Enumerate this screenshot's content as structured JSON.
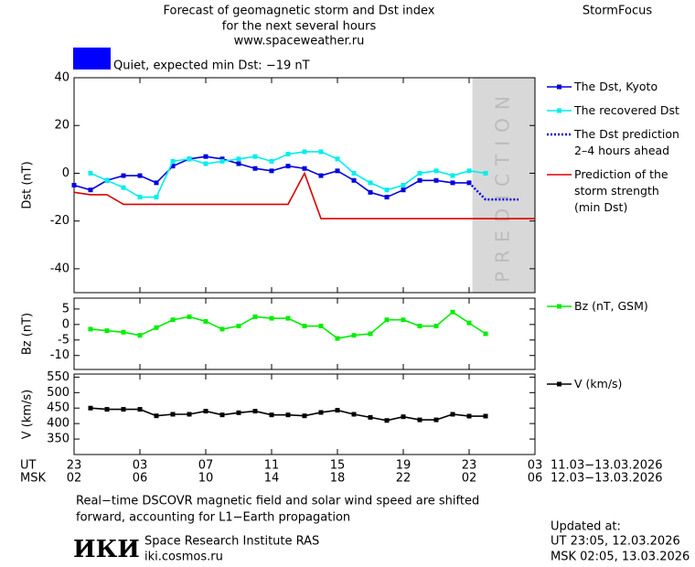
{
  "header": {
    "title_lines": [
      "Forecast of geomagnetic storm and Dst index",
      "for the next several hours",
      "www.spaceweather.ru"
    ],
    "brand": "StormFocus",
    "status": {
      "text": "Quiet, expected min Dst: −19 nT",
      "color": "#0000ff"
    }
  },
  "time_axis": {
    "xlim": [
      0,
      28
    ],
    "row_labels": [
      "UT",
      "MSK"
    ],
    "ut_ticks": [
      {
        "value": 0,
        "label": "23"
      },
      {
        "value": 4,
        "label": "03"
      },
      {
        "value": 8,
        "label": "07"
      },
      {
        "value": 12,
        "label": "11"
      },
      {
        "value": 16,
        "label": "15"
      },
      {
        "value": 20,
        "label": "19"
      },
      {
        "value": 24,
        "label": "23"
      },
      {
        "value": 28,
        "label": "03"
      }
    ],
    "msk_ticks": [
      {
        "value": 0,
        "label": "02"
      },
      {
        "value": 4,
        "label": "06"
      },
      {
        "value": 8,
        "label": "10"
      },
      {
        "value": 12,
        "label": "14"
      },
      {
        "value": 16,
        "label": "18"
      },
      {
        "value": 20,
        "label": "22"
      },
      {
        "value": 24,
        "label": "02"
      },
      {
        "value": 28,
        "label": "06"
      }
    ],
    "ut_range": "11.03−13.03.2026",
    "msk_range": "12.03−13.03.2026"
  },
  "chart_data": [
    {
      "type": "line",
      "y_label": "Dst (nT)",
      "ylim": [
        -50,
        40
      ],
      "yticks": [
        40,
        20,
        0,
        -20,
        -40
      ],
      "shaded_xlim": [
        24.2,
        28
      ],
      "shaded_label": "PREDICTION",
      "series": [
        {
          "name": "The Dst, Kyoto",
          "color": "#0000dd",
          "marker": "square",
          "dash": null,
          "x": [
            0,
            1,
            2,
            3,
            4,
            5,
            6,
            7,
            8,
            9,
            10,
            11,
            12,
            13,
            14,
            15,
            16,
            17,
            18,
            19,
            20,
            21,
            22,
            23,
            24
          ],
          "values": [
            -5,
            -7,
            -3,
            -1,
            -1,
            -4,
            3,
            6,
            7,
            6,
            4,
            2,
            1,
            3,
            2,
            -1,
            1,
            -3,
            -8,
            -10,
            -7,
            -3,
            -3,
            -4,
            -4
          ]
        },
        {
          "name": "The recovered Dst",
          "color": "#00eeee",
          "marker": "square",
          "dash": null,
          "x": [
            1,
            2,
            3,
            4,
            5,
            6,
            7,
            8,
            9,
            10,
            11,
            12,
            13,
            14,
            15,
            16,
            17,
            18,
            19,
            20,
            21,
            22,
            23,
            24,
            25
          ],
          "values": [
            0,
            -3,
            -6,
            -10,
            -10,
            5,
            6,
            4,
            5,
            6,
            7,
            5,
            8,
            9,
            9,
            6,
            0,
            -4,
            -7,
            -5,
            0,
            1,
            -1,
            1,
            0
          ]
        },
        {
          "name": "The Dst prediction\n2–4 hours ahead",
          "color": "#0000dd",
          "marker": null,
          "dash": "dotted",
          "x": [
            24,
            25,
            26,
            27
          ],
          "values": [
            -4,
            -11,
            -11,
            -11
          ]
        },
        {
          "name": "Prediction of the\nstorm strength\n(min Dst)",
          "color": "#dd0000",
          "marker": null,
          "dash": null,
          "x": [
            0,
            1,
            2,
            3,
            13,
            14,
            15,
            28
          ],
          "values": [
            -8,
            -9,
            -9,
            -13,
            -13,
            0,
            -19,
            -19
          ]
        }
      ]
    },
    {
      "type": "line",
      "y_label": "Bz (nT)",
      "ylim": [
        -14.5,
        8.5
      ],
      "yticks": [
        5,
        0,
        -5,
        -10
      ],
      "series": [
        {
          "name": "Bz (nT, GSM)",
          "color": "#00ee00",
          "marker": "square",
          "dash": null,
          "x": [
            1,
            2,
            3,
            4,
            5,
            6,
            7,
            8,
            9,
            10,
            11,
            12,
            13,
            14,
            15,
            16,
            17,
            18,
            19,
            20,
            21,
            22,
            23,
            24,
            25
          ],
          "values": [
            -1.5,
            -2,
            -2.5,
            -3.5,
            -1,
            1.5,
            2.5,
            1,
            -1.5,
            -0.5,
            2.5,
            2,
            2,
            -0.5,
            -0.5,
            -4.5,
            -3.5,
            -3,
            1.5,
            1.5,
            -0.5,
            -0.5,
            4,
            0.5,
            -3
          ]
        }
      ]
    },
    {
      "type": "line",
      "y_label": "V (km/s)",
      "ylim": [
        300,
        560
      ],
      "yticks": [
        550,
        500,
        450,
        400,
        350
      ],
      "series": [
        {
          "name": "V (km/s)",
          "color": "#000000",
          "marker": "square",
          "dash": null,
          "x": [
            1,
            2,
            3,
            4,
            5,
            6,
            7,
            8,
            9,
            10,
            11,
            12,
            13,
            14,
            15,
            16,
            17,
            18,
            19,
            20,
            21,
            22,
            23,
            24,
            25
          ],
          "values": [
            450,
            446,
            446,
            446,
            425,
            430,
            430,
            440,
            428,
            435,
            440,
            428,
            428,
            425,
            436,
            443,
            430,
            420,
            410,
            422,
            412,
            412,
            430,
            424,
            424
          ]
        }
      ]
    }
  ],
  "footer": {
    "note_lines": [
      "Real−time DSCOVR magnetic field and solar wind speed are shifted",
      "forward, accounting for L1−Earth propagation"
    ],
    "logo": "ИКИ",
    "institute": "Space Research Institute RAS",
    "url": "iki.cosmos.ru",
    "updated_lines": [
      "Updated at:",
      "UT   23:05, 12.03.2026",
      "MSK 02:05, 13.03.2026"
    ]
  }
}
